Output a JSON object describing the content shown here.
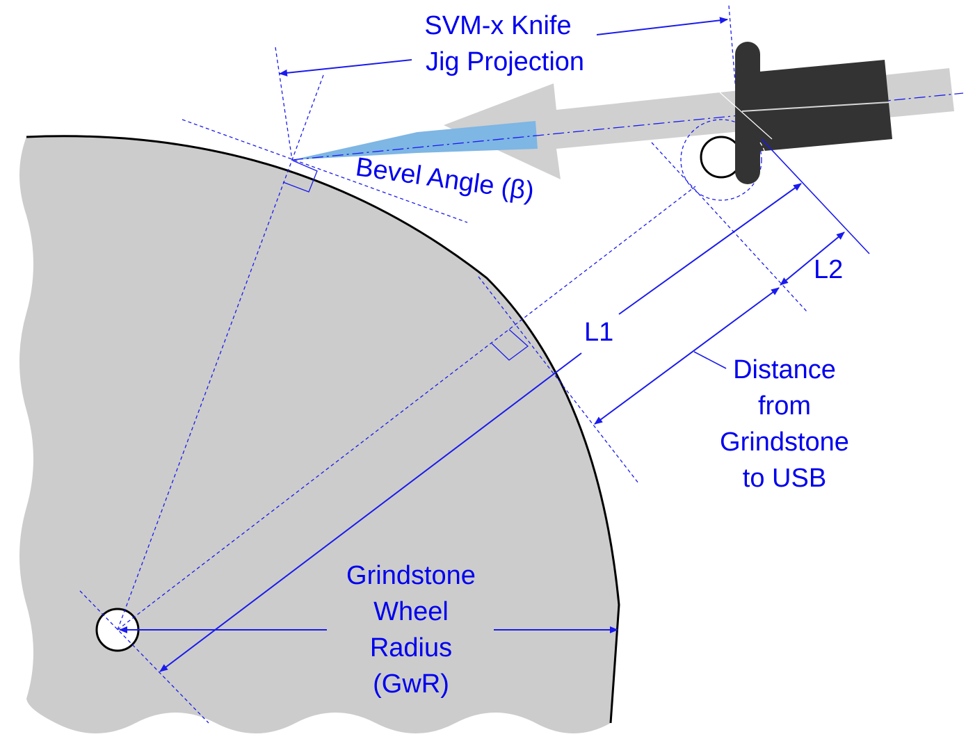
{
  "labels": {
    "jig_line1": "SVM-x Knife",
    "jig_line2": "Jig Projection",
    "bevel": "Bevel Angle (β)",
    "l1": "L1",
    "l2": "L2",
    "dist_line1": "Distance",
    "dist_line2": "from",
    "dist_line3": "Grindstone",
    "dist_line4": "to USB",
    "radius_line1": "Grindstone",
    "radius_line2": "Wheel",
    "radius_line3": "Radius",
    "radius_line4": "(GwR)"
  },
  "colors": {
    "annotation": "#0000ee",
    "wheel_fill": "#cccccc",
    "jig_fill": "#d0d0d0",
    "handle_fill": "#333333",
    "blade_fill": "#7eb6e4"
  }
}
